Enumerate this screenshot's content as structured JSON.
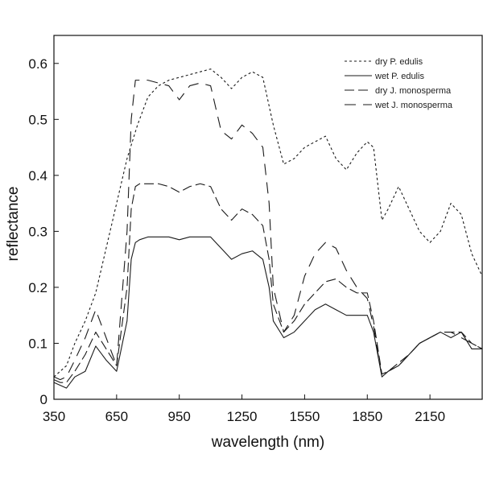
{
  "chart_data": {
    "type": "line",
    "title": "",
    "xlabel": "wavelength (nm)",
    "ylabel": "reflectance",
    "xlim": [
      350,
      2400
    ],
    "ylim": [
      0,
      0.65
    ],
    "xticks": [
      "350",
      "650",
      "950",
      "1250",
      "1550",
      "1850",
      "2150"
    ],
    "yticks": [
      "0",
      "0.1",
      "0.2",
      "0.3",
      "0.4",
      "0.5",
      "0.6"
    ],
    "grid": false,
    "legend_position": "top-right",
    "series": [
      {
        "name": "dry P. edulis",
        "dash": "short",
        "x": [
          350,
          380,
          410,
          450,
          500,
          550,
          600,
          650,
          700,
          750,
          800,
          850,
          900,
          950,
          1000,
          1050,
          1100,
          1150,
          1200,
          1250,
          1300,
          1350,
          1400,
          1450,
          1500,
          1550,
          1600,
          1650,
          1700,
          1750,
          1800,
          1850,
          1880,
          1920,
          1950,
          2000,
          2050,
          2100,
          2150,
          2200,
          2250,
          2300,
          2350,
          2400
        ],
        "y": [
          0.04,
          0.05,
          0.06,
          0.1,
          0.14,
          0.19,
          0.27,
          0.35,
          0.43,
          0.49,
          0.54,
          0.56,
          0.57,
          0.575,
          0.58,
          0.585,
          0.59,
          0.575,
          0.555,
          0.575,
          0.585,
          0.575,
          0.49,
          0.42,
          0.43,
          0.45,
          0.46,
          0.47,
          0.43,
          0.41,
          0.44,
          0.46,
          0.45,
          0.32,
          0.34,
          0.38,
          0.34,
          0.3,
          0.28,
          0.3,
          0.35,
          0.33,
          0.26,
          0.22
        ]
      },
      {
        "name": "wet P. edulis",
        "dash": "solid",
        "x": [
          350,
          380,
          410,
          450,
          500,
          550,
          600,
          650,
          700,
          720,
          740,
          760,
          800,
          850,
          900,
          950,
          1000,
          1050,
          1100,
          1150,
          1200,
          1250,
          1300,
          1350,
          1380,
          1400,
          1450,
          1500,
          1550,
          1600,
          1650,
          1700,
          1750,
          1800,
          1850,
          1880,
          1920,
          1950,
          2000,
          2050,
          2100,
          2150,
          2200,
          2250,
          2300,
          2350,
          2400
        ],
        "y": [
          0.03,
          0.025,
          0.02,
          0.04,
          0.05,
          0.095,
          0.07,
          0.05,
          0.14,
          0.25,
          0.28,
          0.285,
          0.29,
          0.29,
          0.29,
          0.285,
          0.29,
          0.29,
          0.29,
          0.27,
          0.25,
          0.26,
          0.265,
          0.25,
          0.2,
          0.14,
          0.11,
          0.12,
          0.14,
          0.16,
          0.17,
          0.16,
          0.15,
          0.15,
          0.15,
          0.12,
          0.04,
          0.05,
          0.06,
          0.08,
          0.1,
          0.11,
          0.12,
          0.11,
          0.12,
          0.09,
          0.09
        ]
      },
      {
        "name": "dry J. monosperma",
        "dash": "long-dash",
        "x": [
          350,
          380,
          410,
          450,
          500,
          550,
          600,
          650,
          700,
          720,
          740,
          760,
          800,
          850,
          900,
          950,
          1000,
          1050,
          1100,
          1150,
          1200,
          1250,
          1300,
          1350,
          1380,
          1400,
          1450,
          1500,
          1550,
          1600,
          1650,
          1700,
          1750,
          1800,
          1850,
          1880,
          1920,
          1950,
          2000,
          2050,
          2100,
          2150,
          2200,
          2250,
          2300,
          2350,
          2400
        ],
        "y": [
          0.035,
          0.03,
          0.03,
          0.05,
          0.08,
          0.12,
          0.09,
          0.06,
          0.2,
          0.34,
          0.38,
          0.385,
          0.385,
          0.385,
          0.38,
          0.37,
          0.38,
          0.385,
          0.38,
          0.34,
          0.32,
          0.34,
          0.33,
          0.31,
          0.25,
          0.17,
          0.12,
          0.14,
          0.17,
          0.19,
          0.21,
          0.215,
          0.2,
          0.19,
          0.19,
          0.14,
          0.045,
          0.05,
          0.065,
          0.08,
          0.1,
          0.11,
          0.12,
          0.12,
          0.12,
          0.1,
          0.09
        ]
      },
      {
        "name": "wet J. monosperma",
        "dash": "long-gap",
        "x": [
          350,
          380,
          410,
          450,
          500,
          550,
          600,
          650,
          700,
          720,
          740,
          760,
          800,
          850,
          900,
          950,
          1000,
          1050,
          1100,
          1150,
          1200,
          1250,
          1300,
          1350,
          1380,
          1400,
          1450,
          1500,
          1550,
          1600,
          1650,
          1700,
          1750,
          1800,
          1850,
          1880,
          1920,
          1950,
          2000,
          2050,
          2100,
          2150,
          2200,
          2250,
          2300,
          2350,
          2400
        ],
        "y": [
          0.04,
          0.035,
          0.04,
          0.07,
          0.11,
          0.16,
          0.11,
          0.06,
          0.3,
          0.5,
          0.57,
          0.57,
          0.57,
          0.565,
          0.56,
          0.535,
          0.56,
          0.565,
          0.56,
          0.48,
          0.465,
          0.49,
          0.475,
          0.45,
          0.35,
          0.2,
          0.12,
          0.15,
          0.22,
          0.26,
          0.28,
          0.27,
          0.23,
          0.2,
          0.18,
          0.13,
          0.04,
          0.05,
          0.06,
          0.08,
          0.1,
          0.11,
          0.12,
          0.12,
          0.11,
          0.1,
          0.09
        ]
      }
    ]
  },
  "style": {
    "line_color": "#1a1a1a",
    "axis_color": "#111111",
    "background": "#ffffff"
  }
}
